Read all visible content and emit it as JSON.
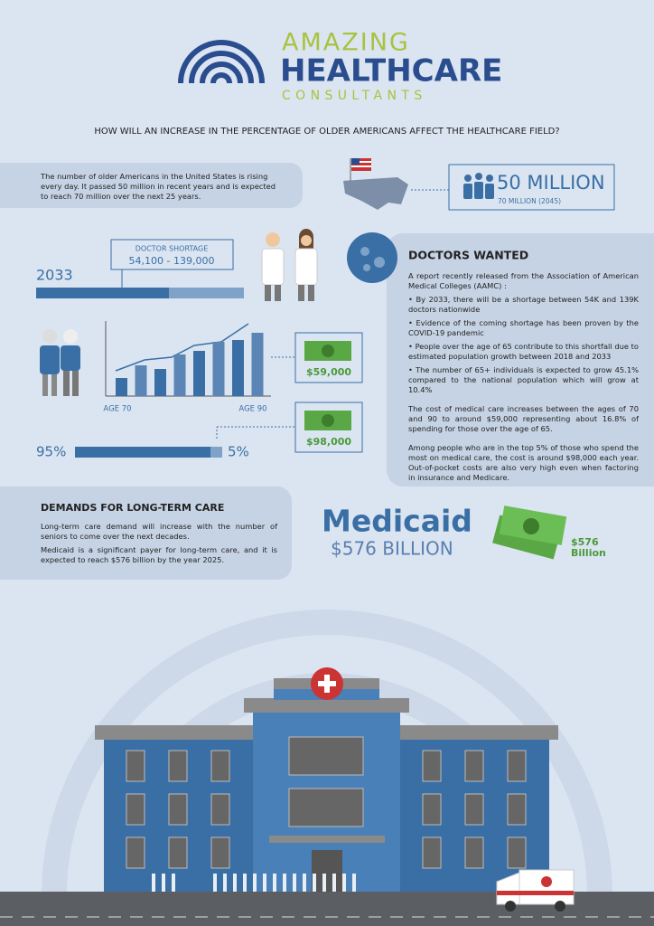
{
  "header": {
    "brand_line1": "AMAZING",
    "brand_line2": "HEALTHCARE",
    "brand_line3": "CONSULTANTS",
    "question": "HOW WILL AN INCREASE IN THE PERCENTAGE OF OLDER AMERICANS AFFECT THE HEALTHCARE FIELD?"
  },
  "population": {
    "text": "The number of older Americans in the United States is rising every day. It passed 50 million in recent years and is expected to reach 70 million over the next 25 years.",
    "headline": "50 MILLION",
    "subline": "70 MILLION (2045)"
  },
  "shortage": {
    "label": "DOCTOR SHORTAGE",
    "range": "54,100 - 139,000",
    "year": "2033"
  },
  "cost_chart": {
    "x_start": "AGE 70",
    "x_end": "AGE 90",
    "values": [
      20,
      34,
      30,
      46,
      50,
      60,
      62,
      70
    ]
  },
  "money_labels": [
    "$59,000",
    "$98,000"
  ],
  "split": {
    "left": "95%",
    "right": "5%"
  },
  "doctors_wanted": {
    "title": "DOCTORS WANTED",
    "intro": "A report recently released from the Association of American Medical Colleges (AAMC) :",
    "bullets": [
      "By 2033, there will be a shortage between 54K and 139K doctors nationwide",
      "Evidence of the coming shortage has been proven by the COVID-19 pandemic",
      "People over the age of 65 contribute to this shortfall due to estimated population growth between 2018 and 2033",
      "The number of 65+ individuals is expected to grow 45.1% compared to the national population which will grow at 10.4%"
    ],
    "paragraphs": [
      "The cost of medical care increases between the ages of 70 and 90 to around $59,000 representing about 16.8% of spending for those over the age of 65.",
      "Among people who are in the top 5% of those who spend the most on medical care, the cost is around $98,000 each year. Out-of-pocket costs are also very high even when factoring in insurance and Medicare."
    ]
  },
  "long_term_care": {
    "title": "DEMANDS FOR LONG-TERM CARE",
    "paragraphs": [
      "Long-term care demand will increase with the number of seniors to come over the next decades.",
      "Medicaid is a significant payer for long-term care, and it is expected to reach $576 billion by the year 2025."
    ]
  },
  "medicaid": {
    "title": "Medicaid",
    "amount": "$576 BILLION",
    "badge_line1": "$576",
    "badge_line2": "Billion"
  }
}
